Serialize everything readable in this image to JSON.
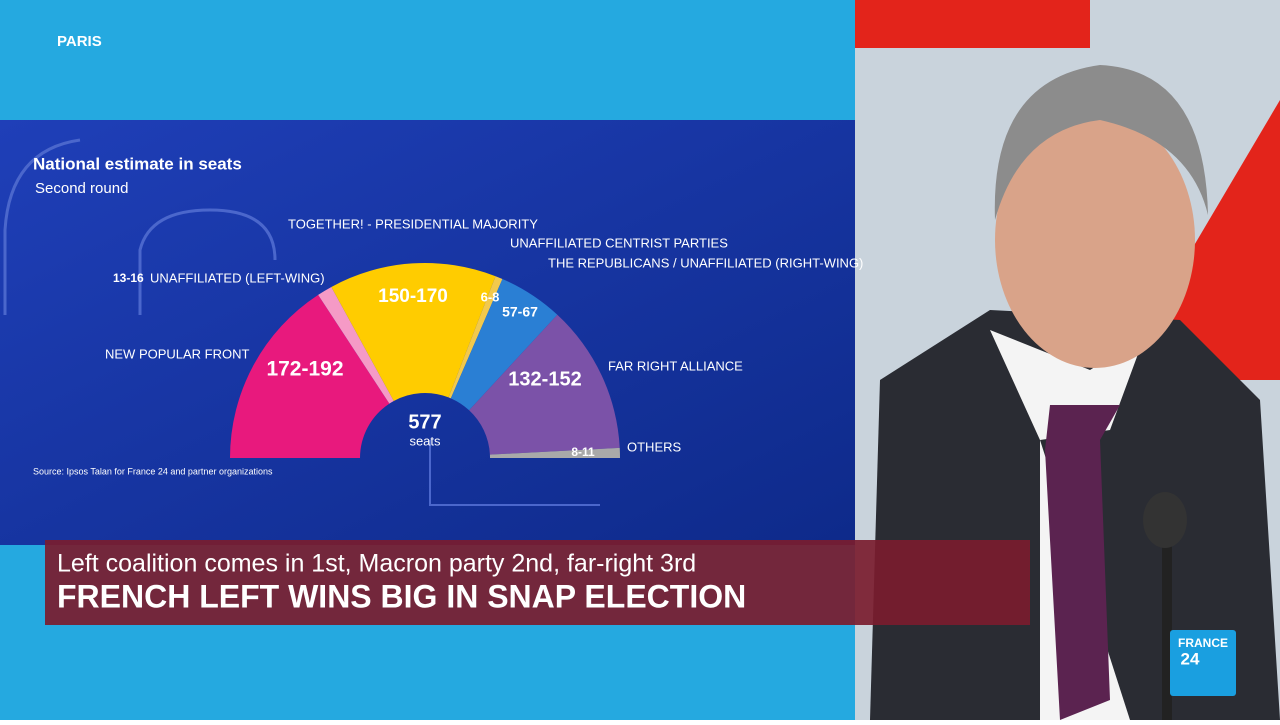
{
  "location": "PARIS",
  "chart": {
    "title": "National estimate in seats",
    "subtitle": "Second round",
    "total": 577,
    "total_unit": "seats",
    "source": "Source: Ipsos Talan for France 24 and partner organizations",
    "parties": [
      {
        "name": "NEW POPULAR FRONT",
        "low": 172,
        "high": 192,
        "label": "172-192",
        "color": "#e8197d"
      },
      {
        "name": "UNAFFILIATED (LEFT-WING)",
        "low": 13,
        "high": 16,
        "label": "13-16",
        "color": "#f59ac6"
      },
      {
        "name": "TOGETHER! - PRESIDENTIAL MAJORITY",
        "low": 150,
        "high": 170,
        "label": "150-170",
        "color": "#ffcc00"
      },
      {
        "name": "UNAFFILIATED CENTRIST PARTIES",
        "low": 6,
        "high": 8,
        "label": "6-8",
        "color": "#f2c94c"
      },
      {
        "name": "THE REPUBLICANS / UNAFFILIATED (RIGHT-WING)",
        "low": 57,
        "high": 67,
        "label": "57-67",
        "color": "#2a7fd4"
      },
      {
        "name": "FAR RIGHT ALLIANCE",
        "low": 132,
        "high": 152,
        "label": "132-152",
        "color": "#7b52a8"
      },
      {
        "name": "OTHERS",
        "low": 8,
        "high": 11,
        "label": "8-11",
        "color": "#a9a9a9"
      }
    ]
  },
  "banner": {
    "subtitle": "Left coalition comes in 1st, Macron party 2nd, far-right 3rd",
    "headline": "FRENCH LEFT WINS BIG IN SNAP ELECTION"
  },
  "logo": {
    "line1": "FRANCE",
    "line2": "24"
  }
}
